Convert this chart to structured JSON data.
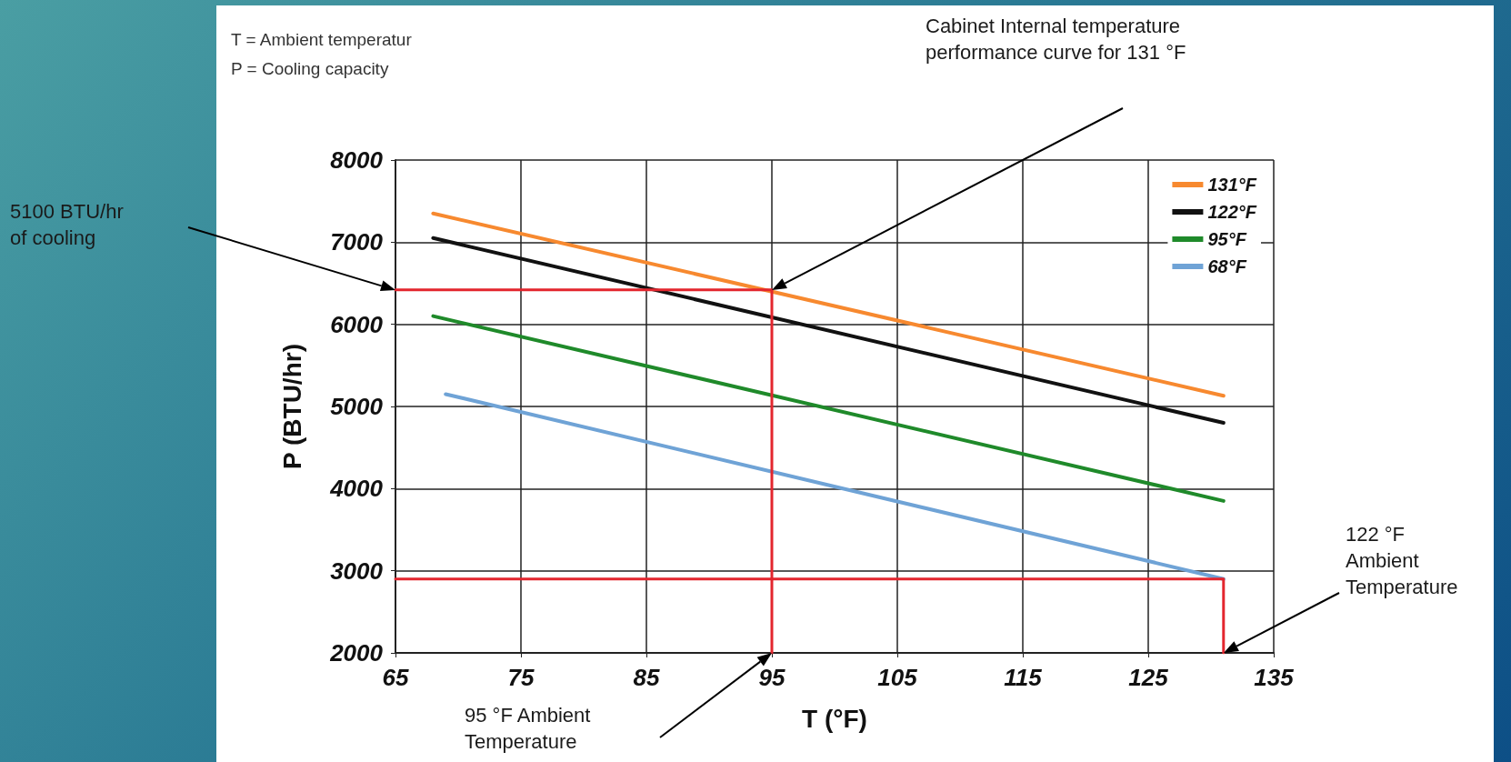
{
  "chart_data": {
    "type": "line",
    "xlabel": "T (°F)",
    "ylabel": "P (BTU/hr)",
    "xlim": [
      65,
      135
    ],
    "xticks": [
      65,
      75,
      85,
      95,
      105,
      115,
      125,
      135
    ],
    "ylim": [
      2000,
      8000
    ],
    "yticks": [
      2000,
      3000,
      4000,
      5000,
      6000,
      7000,
      8000
    ],
    "grid": true,
    "legend": "top right",
    "marker": "none",
    "line_style": "solid",
    "series": [
      {
        "name": "131°F",
        "color": "#f7892f",
        "x": [
          68,
          131
        ],
        "values": [
          7350,
          5130
        ]
      },
      {
        "name": "122°F",
        "color": "#111111",
        "x": [
          68,
          131
        ],
        "values": [
          7050,
          4800
        ]
      },
      {
        "name": "95°F",
        "color": "#1f8a2a",
        "x": [
          68,
          131
        ],
        "values": [
          6100,
          3850
        ]
      },
      {
        "name": "68°F",
        "color": "#6fa3d6",
        "x": [
          69,
          131
        ],
        "values": [
          5150,
          2900
        ]
      },
      {
        "color": "#e3262e",
        "x": [
          65,
          95,
          95
        ],
        "values": [
          6420,
          6420,
          2000
        ]
      },
      {
        "color": "#e3262e",
        "x": [
          65,
          131,
          131
        ],
        "values": [
          2900,
          2900,
          2000
        ]
      }
    ],
    "annotations": [
      "T = Ambient temperatur",
      "P = Cooling capacity",
      "5100 BTU/hr of cooling",
      "Cabinet Internal temperature performance curve for 131 °F",
      "95 °F Ambient Temperature",
      "122 °F Ambient Temperature"
    ]
  }
}
